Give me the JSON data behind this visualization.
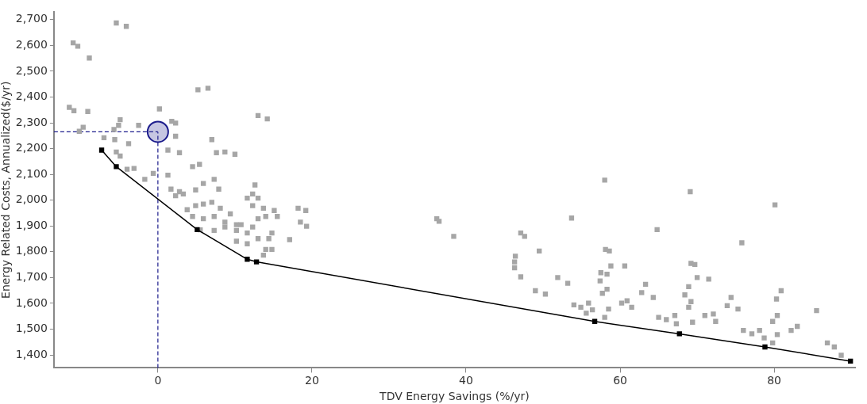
{
  "chart_data": {
    "type": "scatter",
    "xlabel": "TDV Energy Savings (%/yr)",
    "ylabel": "Energy Related Costs, Annualized($/yr)",
    "xlim": [
      -13.5,
      90.5
    ],
    "ylim": [
      1350,
      2730
    ],
    "xticks": [
      0,
      20,
      40,
      60,
      80
    ],
    "yticks": [
      {
        "value": 1400,
        "label": "1,400"
      },
      {
        "value": 1500,
        "label": "1,500"
      },
      {
        "value": 1600,
        "label": "1,600"
      },
      {
        "value": 1700,
        "label": "1,700"
      },
      {
        "value": 1800,
        "label": "1,800"
      },
      {
        "value": 1900,
        "label": "1,900"
      },
      {
        "value": 2000,
        "label": "2,000"
      },
      {
        "value": 2100,
        "label": "2,100"
      },
      {
        "value": 2200,
        "label": "2,200"
      },
      {
        "value": 2300,
        "label": "2,300"
      },
      {
        "value": 2400,
        "label": "2,400"
      },
      {
        "value": 2500,
        "label": "2,500"
      },
      {
        "value": 2600,
        "label": "2,600"
      },
      {
        "value": 2700,
        "label": "2,700"
      }
    ],
    "grid": false,
    "legend": false,
    "ref_lines": [
      {
        "axis": "x",
        "value": 0,
        "color": "#1c1c8c",
        "line_style": "dashed"
      },
      {
        "axis": "y",
        "value": 2265,
        "color": "#1c1c8c",
        "line_style": "dashed"
      }
    ],
    "series": [
      {
        "type": "scatter",
        "color": "#a6a6a6",
        "marker": "square",
        "x": [
          -11.0,
          -10.4,
          -8.9,
          -5.4,
          -4.1,
          -11.5,
          -10.9,
          -9.1,
          -9.7,
          -10.2,
          -5.7,
          -4.9,
          -5.1,
          -2.5,
          0.2,
          1.8,
          2.3,
          2.3,
          -7.0,
          -5.6,
          -3.8,
          1.3,
          2.8,
          -5.4,
          -4.9,
          -4.0,
          -3.1,
          -0.6,
          -1.7,
          1.3,
          1.7,
          2.8,
          4.5,
          5.4,
          5.2,
          6.5,
          7.0,
          13.0,
          14.2,
          7.6,
          8.7,
          10.0,
          2.3,
          3.3,
          5.9,
          7.3,
          7.9,
          4.9,
          12.6,
          12.3,
          11.6,
          13.0,
          18.2,
          19.2,
          18.5,
          19.3,
          17.1,
          3.8,
          4.9,
          5.9,
          7.0,
          8.1,
          9.4,
          4.5,
          5.9,
          7.3,
          8.7,
          10.2,
          5.5,
          7.3,
          8.7,
          10.2,
          12.3,
          13.7,
          15.1,
          14.0,
          15.5,
          13.0,
          10.8,
          12.3,
          11.6,
          10.2,
          11.6,
          13.0,
          14.4,
          14.0,
          14.8,
          13.7,
          14.8,
          36.2,
          36.5,
          38.4,
          58.0,
          53.7,
          64.8,
          47.1,
          47.6,
          49.5,
          46.4,
          46.3,
          46.3,
          47.1,
          49.0,
          50.3,
          51.9,
          53.2,
          58.1,
          58.6,
          58.8,
          60.6,
          57.5,
          58.3,
          57.4,
          58.3,
          57.7,
          54.0,
          54.9,
          55.9,
          56.4,
          55.6,
          58.5,
          58.0,
          60.2,
          60.9,
          61.5,
          63.3,
          62.8,
          64.3,
          65.0,
          69.1,
          80.1,
          75.8,
          69.2,
          69.7,
          70.0,
          71.5,
          68.9,
          68.4,
          69.2,
          68.9,
          66.0,
          67.1,
          67.3,
          69.4,
          71.0,
          72.1,
          72.4,
          74.4,
          73.9,
          75.3,
          80.9,
          80.3,
          80.4,
          79.8,
          76.0,
          77.1,
          78.1,
          78.7,
          80.4,
          79.8,
          82.2,
          83.0,
          85.5,
          86.9,
          87.8,
          88.7
        ],
        "values": [
          2610,
          2597,
          2551,
          2687,
          2674,
          2360,
          2347,
          2344,
          2283,
          2267,
          2274,
          2312,
          2290,
          2290,
          2354,
          2306,
          2299,
          2248,
          2242,
          2235,
          2219,
          2194,
          2184,
          2187,
          2171,
          2120,
          2123,
          2104,
          2081,
          2097,
          2043,
          2033,
          2130,
          2139,
          2428,
          2434,
          2235,
          2328,
          2315,
          2184,
          2187,
          2178,
          2017,
          2024,
          2065,
          2081,
          2043,
          2040,
          2059,
          2024,
          2008,
          2008,
          1969,
          1960,
          1915,
          1899,
          1847,
          1963,
          1979,
          1985,
          1992,
          1969,
          1947,
          1937,
          1928,
          1937,
          1915,
          1905,
          1885,
          1883,
          1896,
          1883,
          1979,
          1969,
          1960,
          1937,
          1937,
          1928,
          1905,
          1896,
          1873,
          1841,
          1831,
          1851,
          1851,
          1809,
          1873,
          1787,
          1809,
          1928,
          1918,
          1860,
          2078,
          1931,
          1886,
          1873,
          1860,
          1803,
          1783,
          1761,
          1738,
          1703,
          1649,
          1636,
          1700,
          1678,
          1809,
          1803,
          1745,
          1745,
          1719,
          1713,
          1687,
          1655,
          1639,
          1594,
          1585,
          1601,
          1575,
          1562,
          1578,
          1546,
          1601,
          1610,
          1585,
          1674,
          1642,
          1623,
          1546,
          2033,
          1982,
          1835,
          1755,
          1751,
          1700,
          1694,
          1665,
          1633,
          1607,
          1585,
          1537,
          1553,
          1521,
          1527,
          1553,
          1559,
          1530,
          1623,
          1591,
          1578,
          1649,
          1617,
          1553,
          1530,
          1495,
          1482,
          1495,
          1466,
          1479,
          1447,
          1495,
          1511,
          1572,
          1447,
          1431,
          1399
        ]
      },
      {
        "type": "line",
        "color": "#000000",
        "marker": "square",
        "line_style": "solid",
        "x": [
          -7.3,
          -5.4,
          5.1,
          11.6,
          12.8,
          56.7,
          67.7,
          78.8,
          89.9
        ],
        "values": [
          2194,
          2130,
          1886,
          1771,
          1761,
          1530,
          1482,
          1431,
          1376
        ]
      },
      {
        "type": "scatter",
        "color": "#1c1c8c",
        "marker": "circle",
        "x": [
          0
        ],
        "values": [
          2265
        ]
      }
    ]
  }
}
